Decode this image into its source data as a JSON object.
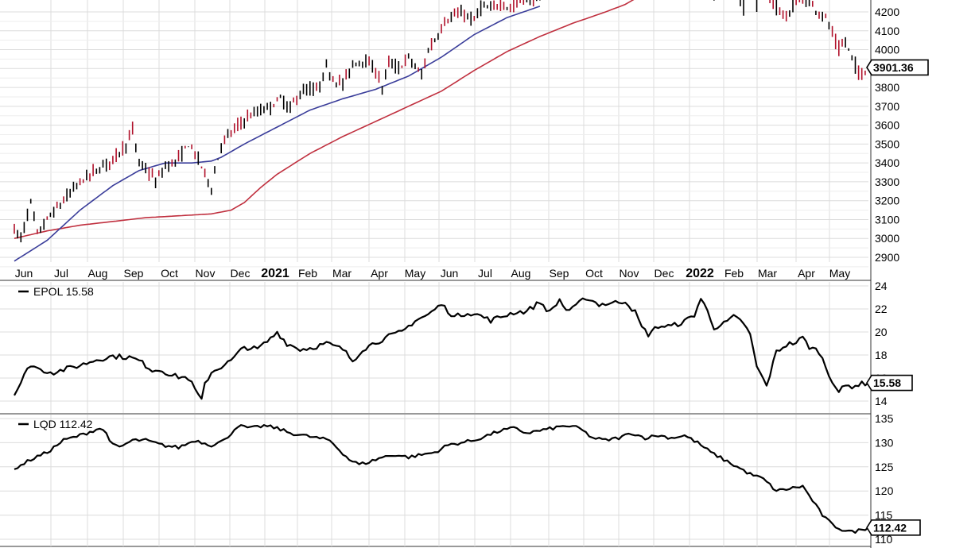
{
  "chart_data": [
    {
      "type": "candlestick",
      "price_tag": "3901.36",
      "y_ticks": [
        2900,
        3000,
        3100,
        3200,
        3300,
        3400,
        3500,
        3600,
        3700,
        3800,
        3900,
        4000,
        4100,
        4200
      ],
      "ylim": [
        2870,
        4280
      ],
      "grid": true,
      "x_labels": [
        {
          "text": "Jun",
          "kind": "month"
        },
        {
          "text": "Jul",
          "kind": "month"
        },
        {
          "text": "Aug",
          "kind": "month"
        },
        {
          "text": "Sep",
          "kind": "month"
        },
        {
          "text": "Oct",
          "kind": "month"
        },
        {
          "text": "Nov",
          "kind": "month"
        },
        {
          "text": "Dec",
          "kind": "month"
        },
        {
          "text": "2021",
          "kind": "year"
        },
        {
          "text": "Feb",
          "kind": "month"
        },
        {
          "text": "Mar",
          "kind": "month"
        },
        {
          "text": "Apr",
          "kind": "month"
        },
        {
          "text": "May",
          "kind": "month"
        },
        {
          "text": "Jun",
          "kind": "month"
        },
        {
          "text": "Jul",
          "kind": "month"
        },
        {
          "text": "Aug",
          "kind": "month"
        },
        {
          "text": "Sep",
          "kind": "month"
        },
        {
          "text": "Oct",
          "kind": "month"
        },
        {
          "text": "Nov",
          "kind": "month"
        },
        {
          "text": "Dec",
          "kind": "month"
        },
        {
          "text": "2022",
          "kind": "year"
        },
        {
          "text": "Feb",
          "kind": "month"
        },
        {
          "text": "Mar",
          "kind": "month"
        },
        {
          "text": "Apr",
          "kind": "month"
        },
        {
          "text": "May",
          "kind": "month"
        }
      ],
      "price_anchors": [
        [
          0,
          3050
        ],
        [
          2,
          3000
        ],
        [
          5,
          3190
        ],
        [
          7,
          3020
        ],
        [
          10,
          3100
        ],
        [
          15,
          3200
        ],
        [
          20,
          3300
        ],
        [
          25,
          3360
        ],
        [
          30,
          3420
        ],
        [
          34,
          3500
        ],
        [
          36,
          3570
        ],
        [
          38,
          3400
        ],
        [
          41,
          3350
        ],
        [
          43,
          3300
        ],
        [
          46,
          3380
        ],
        [
          50,
          3420
        ],
        [
          53,
          3500
        ],
        [
          56,
          3420
        ],
        [
          60,
          3270
        ],
        [
          63,
          3500
        ],
        [
          66,
          3560
        ],
        [
          70,
          3630
        ],
        [
          73,
          3660
        ],
        [
          78,
          3700
        ],
        [
          81,
          3740
        ],
        [
          84,
          3690
        ],
        [
          87,
          3770
        ],
        [
          90,
          3790
        ],
        [
          92,
          3780
        ],
        [
          95,
          3900
        ],
        [
          97,
          3850
        ],
        [
          100,
          3820
        ],
        [
          103,
          3920
        ],
        [
          106,
          3950
        ],
        [
          110,
          3890
        ],
        [
          112,
          3800
        ],
        [
          114,
          3930
        ],
        [
          117,
          3900
        ],
        [
          120,
          3960
        ],
        [
          124,
          3860
        ],
        [
          126,
          4000
        ],
        [
          128,
          4050
        ],
        [
          131,
          4150
        ],
        [
          134,
          4180
        ],
        [
          137,
          4190
        ],
        [
          140,
          4150
        ],
        [
          142,
          4230
        ],
        [
          145,
          4210
        ],
        [
          148,
          4250
        ],
        [
          151,
          4220
        ],
        [
          154,
          4260
        ],
        [
          157,
          4270
        ],
        [
          160,
          4280
        ],
        [
          229,
          4280
        ],
        [
          232,
          4230
        ],
        [
          235,
          4170
        ],
        [
          238,
          4250
        ],
        [
          241,
          4270
        ],
        [
          245,
          4200
        ],
        [
          247,
          4170
        ],
        [
          249,
          4080
        ],
        [
          251,
          4000
        ],
        [
          253,
          4040
        ],
        [
          255,
          3960
        ],
        [
          257,
          3870
        ],
        [
          260,
          3900
        ]
      ],
      "sma50_anchors": [
        [
          0,
          2880
        ],
        [
          10,
          2990
        ],
        [
          20,
          3150
        ],
        [
          30,
          3280
        ],
        [
          38,
          3360
        ],
        [
          46,
          3400
        ],
        [
          54,
          3400
        ],
        [
          60,
          3410
        ],
        [
          63,
          3430
        ],
        [
          70,
          3500
        ],
        [
          80,
          3590
        ],
        [
          90,
          3680
        ],
        [
          100,
          3740
        ],
        [
          110,
          3790
        ],
        [
          120,
          3860
        ],
        [
          130,
          3960
        ],
        [
          140,
          4080
        ],
        [
          150,
          4170
        ],
        [
          160,
          4230
        ]
      ],
      "sma200_anchors": [
        [
          0,
          3000
        ],
        [
          10,
          3040
        ],
        [
          20,
          3070
        ],
        [
          30,
          3090
        ],
        [
          40,
          3110
        ],
        [
          50,
          3120
        ],
        [
          60,
          3130
        ],
        [
          66,
          3150
        ],
        [
          70,
          3190
        ],
        [
          75,
          3270
        ],
        [
          80,
          3340
        ],
        [
          90,
          3450
        ],
        [
          100,
          3540
        ],
        [
          110,
          3620
        ],
        [
          120,
          3700
        ],
        [
          130,
          3780
        ],
        [
          140,
          3890
        ],
        [
          150,
          3990
        ],
        [
          160,
          4070
        ],
        [
          170,
          4140
        ],
        [
          180,
          4200
        ],
        [
          186,
          4240
        ],
        [
          190,
          4280
        ]
      ]
    },
    {
      "type": "line",
      "legend": "EPOL 15.58",
      "price_tag": "15.58",
      "y_ticks": [
        14,
        16,
        18,
        20,
        22,
        24
      ],
      "ylim": [
        13.5,
        24
      ],
      "grid": true,
      "anchors": [
        [
          0,
          14.5
        ],
        [
          3,
          16.2
        ],
        [
          5,
          17.2
        ],
        [
          8,
          16.7
        ],
        [
          12,
          16.5
        ],
        [
          16,
          16.8
        ],
        [
          20,
          17.1
        ],
        [
          25,
          17.6
        ],
        [
          30,
          17.9
        ],
        [
          35,
          17.8
        ],
        [
          38,
          17.5
        ],
        [
          42,
          16.7
        ],
        [
          45,
          16.7
        ],
        [
          48,
          16.2
        ],
        [
          53,
          16.0
        ],
        [
          56,
          14.5
        ],
        [
          57,
          14.0
        ],
        [
          58,
          15.5
        ],
        [
          60,
          16.5
        ],
        [
          63,
          17.0
        ],
        [
          66,
          17.5
        ],
        [
          70,
          18.7
        ],
        [
          74,
          18.5
        ],
        [
          78,
          19.4
        ],
        [
          80,
          20.0
        ],
        [
          83,
          19.0
        ],
        [
          87,
          18.5
        ],
        [
          90,
          18.6
        ],
        [
          95,
          19.0
        ],
        [
          100,
          18.5
        ],
        [
          103,
          17.5
        ],
        [
          106,
          18.5
        ],
        [
          110,
          19.1
        ],
        [
          114,
          19.6
        ],
        [
          118,
          20.0
        ],
        [
          122,
          21.0
        ],
        [
          126,
          21.5
        ],
        [
          130,
          22.4
        ],
        [
          134,
          21.3
        ],
        [
          138,
          21.7
        ],
        [
          142,
          21.4
        ],
        [
          145,
          21.0
        ],
        [
          148,
          21.3
        ],
        [
          152,
          21.7
        ],
        [
          156,
          21.8
        ],
        [
          160,
          22.6
        ],
        [
          163,
          21.7
        ],
        [
          166,
          22.8
        ],
        [
          168,
          21.9
        ],
        [
          170,
          22.0
        ],
        [
          174,
          23.0
        ],
        [
          178,
          22.4
        ],
        [
          182,
          22.5
        ],
        [
          186,
          22.7
        ],
        [
          189,
          21.7
        ],
        [
          191,
          20.4
        ],
        [
          193,
          19.8
        ],
        [
          196,
          20.5
        ],
        [
          200,
          20.5
        ],
        [
          204,
          20.9
        ],
        [
          207,
          21.5
        ],
        [
          209,
          22.9
        ],
        [
          211,
          21.8
        ],
        [
          213,
          20.4
        ],
        [
          216,
          20.7
        ],
        [
          219,
          21.3
        ],
        [
          222,
          20.8
        ],
        [
          224,
          19.7
        ],
        [
          226,
          17.0
        ],
        [
          229,
          15.3
        ],
        [
          232,
          18.3
        ],
        [
          235,
          18.9
        ],
        [
          238,
          19.1
        ],
        [
          240,
          19.5
        ],
        [
          242,
          18.7
        ],
        [
          245,
          18.3
        ],
        [
          248,
          16.3
        ],
        [
          251,
          14.8
        ],
        [
          253,
          15.3
        ],
        [
          255,
          15.3
        ],
        [
          258,
          15.5
        ],
        [
          260,
          15.58
        ]
      ]
    },
    {
      "type": "line",
      "legend": "LQD 112.42",
      "price_tag": "112.42",
      "y_ticks": [
        110,
        115,
        120,
        125,
        130,
        135
      ],
      "ylim": [
        109.5,
        136
      ],
      "grid": true,
      "anchors": [
        [
          0,
          124.5
        ],
        [
          5,
          126.5
        ],
        [
          10,
          128.0
        ],
        [
          15,
          130.5
        ],
        [
          20,
          131.5
        ],
        [
          24,
          132.5
        ],
        [
          26,
          133.0
        ],
        [
          28,
          132.0
        ],
        [
          30,
          129.5
        ],
        [
          32,
          129.0
        ],
        [
          36,
          130.5
        ],
        [
          40,
          130.5
        ],
        [
          45,
          129.5
        ],
        [
          50,
          129.0
        ],
        [
          55,
          130.5
        ],
        [
          60,
          129.5
        ],
        [
          64,
          130.5
        ],
        [
          68,
          133.5
        ],
        [
          72,
          133.0
        ],
        [
          76,
          133.5
        ],
        [
          80,
          133.0
        ],
        [
          84,
          132.0
        ],
        [
          88,
          131.5
        ],
        [
          92,
          131.0
        ],
        [
          96,
          130.5
        ],
        [
          99,
          128.5
        ],
        [
          102,
          126.5
        ],
        [
          105,
          125.5
        ],
        [
          108,
          126.0
        ],
        [
          112,
          127.0
        ],
        [
          116,
          127.5
        ],
        [
          120,
          127.0
        ],
        [
          124,
          127.5
        ],
        [
          128,
          128.0
        ],
        [
          132,
          129.5
        ],
        [
          136,
          130.0
        ],
        [
          140,
          130.5
        ],
        [
          144,
          131.5
        ],
        [
          148,
          132.5
        ],
        [
          152,
          133.0
        ],
        [
          156,
          132.0
        ],
        [
          160,
          132.5
        ],
        [
          164,
          133.0
        ],
        [
          168,
          133.5
        ],
        [
          172,
          133.0
        ],
        [
          176,
          131.0
        ],
        [
          180,
          130.5
        ],
        [
          184,
          131.0
        ],
        [
          188,
          132.0
        ],
        [
          192,
          131.0
        ],
        [
          196,
          131.5
        ],
        [
          200,
          131.0
        ],
        [
          204,
          131.5
        ],
        [
          208,
          130.0
        ],
        [
          212,
          128.0
        ],
        [
          216,
          126.5
        ],
        [
          220,
          125.0
        ],
        [
          224,
          123.5
        ],
        [
          228,
          122.5
        ],
        [
          232,
          120.0
        ],
        [
          236,
          120.5
        ],
        [
          240,
          121.0
        ],
        [
          243,
          118.0
        ],
        [
          246,
          115.0
        ],
        [
          249,
          113.0
        ],
        [
          252,
          112.0
        ],
        [
          255,
          111.5
        ],
        [
          258,
          112.0
        ],
        [
          260,
          112.42
        ]
      ]
    }
  ]
}
